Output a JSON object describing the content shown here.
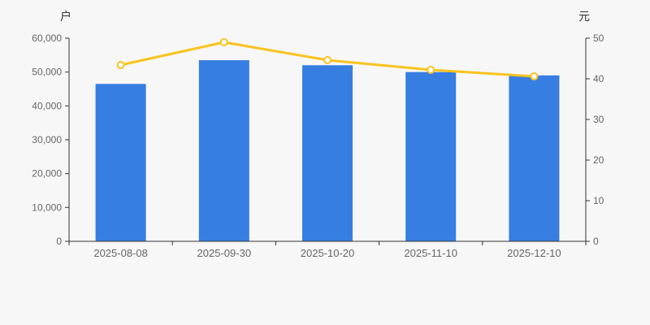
{
  "page": {
    "background": "#f7f7f7"
  },
  "chart_data": {
    "type": "bar",
    "title": "",
    "categories": [
      "2025-08-08",
      "2025-09-30",
      "2025-10-20",
      "2025-11-10",
      "2025-12-10"
    ],
    "series": [
      {
        "type": "bar",
        "y_axis": "left",
        "color": "#377ee2",
        "values": [
          46500,
          53500,
          52000,
          50000,
          49000
        ]
      },
      {
        "type": "line",
        "y_axis": "right",
        "color": "#fac31e",
        "marker": "open-circle",
        "marker_fill": "#ffffff",
        "values": [
          43.4,
          49.0,
          44.6,
          42.2,
          40.6
        ]
      }
    ],
    "left_axis": {
      "title": "户",
      "min": 0,
      "max": 60000,
      "tick_step": 10000,
      "tick_labels": [
        "0",
        "10,000",
        "20,000",
        "30,000",
        "40,000",
        "50,000",
        "60,000"
      ]
    },
    "right_axis": {
      "title": "元",
      "min": 0,
      "max": 50,
      "tick_step": 10,
      "tick_labels": [
        "0",
        "10",
        "20",
        "30",
        "40",
        "50"
      ]
    },
    "grid": false,
    "legend": false,
    "colors": {
      "axis_line": "#333333",
      "tick_text": "#666666",
      "axis_title": "#333333",
      "background": "#f7f7f7"
    }
  }
}
